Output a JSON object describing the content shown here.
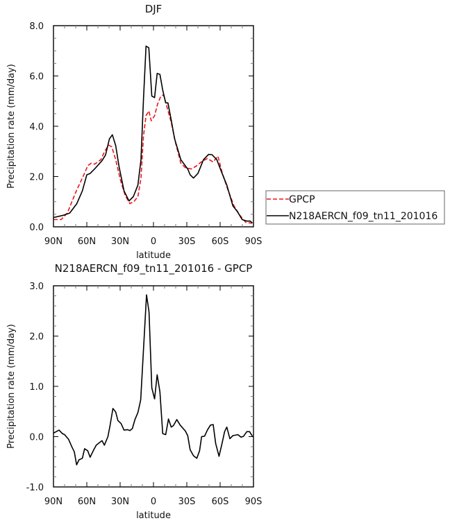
{
  "chart_data": [
    {
      "type": "line",
      "title": "DJF",
      "xlabel": "latitude",
      "ylabel": "Precipitation rate (mm/day)",
      "xlim": [
        90,
        -90
      ],
      "ylim": [
        0,
        8
      ],
      "xticks": [
        90,
        60,
        30,
        0,
        -30,
        -60,
        -90
      ],
      "xtick_labels": [
        "90N",
        "60N",
        "30N",
        "0",
        "30S",
        "60S",
        "90S"
      ],
      "yticks": [
        0,
        2,
        4,
        6,
        8
      ],
      "ytick_labels": [
        "0.0",
        "2.0",
        "4.0",
        "6.0",
        "8.0"
      ],
      "legend_position": "right-outside",
      "series": [
        {
          "name": "GPCP",
          "color": "#e8141b",
          "style": "dashed",
          "x": [
            90,
            83,
            77.5,
            73.3,
            69,
            64,
            59,
            56,
            53,
            47.3,
            44,
            40.4,
            37.5,
            34,
            29.6,
            25.4,
            21.25,
            17.5,
            14,
            11.25,
            9,
            6.7,
            4.2,
            2,
            -1,
            -3.7,
            -6.7,
            -9,
            -12,
            -16,
            -20,
            -24.6,
            -28.75,
            -34,
            -38,
            -43,
            -48.5,
            -53.7,
            -58,
            -62,
            -67,
            -72.5,
            -77.7,
            -83,
            -89
          ],
          "y": [
            0.29,
            0.29,
            0.55,
            1.01,
            1.47,
            1.94,
            2.44,
            2.53,
            2.49,
            2.67,
            3.0,
            3.25,
            3.18,
            2.67,
            1.84,
            1.24,
            0.92,
            1.01,
            1.2,
            1.94,
            3.6,
            4.42,
            4.61,
            4.22,
            4.42,
            4.88,
            5.2,
            5.25,
            4.79,
            4.15,
            3.32,
            2.53,
            2.35,
            2.3,
            2.4,
            2.58,
            2.72,
            2.58,
            2.81,
            2.12,
            1.47,
            0.83,
            0.46,
            0.18,
            0.14
          ]
        },
        {
          "name": "N218AERCN_f09_tn11_201016",
          "color": "#000000",
          "style": "solid",
          "x": [
            90,
            81,
            75.4,
            69,
            64,
            60,
            57,
            53,
            46.3,
            43.1,
            39.6,
            37,
            34,
            31,
            26.5,
            22,
            18.1,
            14,
            11.25,
            9,
            6.7,
            4.2,
            1.5,
            -1,
            -3.3,
            -5.8,
            -8.3,
            -11,
            -13,
            -16,
            -19,
            -24.6,
            -30.8,
            -33,
            -36,
            -40,
            -45,
            -49.6,
            -52.7,
            -57,
            -61,
            -66,
            -71.5,
            -75.6,
            -79.8,
            -84,
            -87,
            -89
          ],
          "y": [
            0.37,
            0.46,
            0.55,
            0.92,
            1.43,
            2.07,
            2.12,
            2.3,
            2.63,
            2.86,
            3.5,
            3.66,
            3.23,
            2.4,
            1.43,
            1.03,
            1.2,
            1.66,
            2.67,
            5.07,
            7.19,
            7.12,
            5.2,
            5.14,
            6.1,
            6.06,
            5.44,
            4.93,
            4.93,
            4.24,
            3.5,
            2.67,
            2.3,
            2.07,
            1.94,
            2.12,
            2.67,
            2.88,
            2.87,
            2.67,
            2.21,
            1.66,
            0.83,
            0.6,
            0.29,
            0.23,
            0.23,
            0.16
          ]
        }
      ],
      "legend": [
        "GPCP",
        "N218AERCN_f09_tn11_201016"
      ]
    },
    {
      "type": "line",
      "title": "N218AERCN_f09_tn11_201016 - GPCP",
      "xlabel": "latitude",
      "ylabel": "Precipitation rate (mm/day)",
      "xlim": [
        90,
        -90
      ],
      "ylim": [
        -1,
        3
      ],
      "xticks": [
        90,
        60,
        30,
        0,
        -30,
        -60,
        -90
      ],
      "xtick_labels": [
        "90N",
        "60N",
        "30N",
        "0",
        "30S",
        "60S",
        "90S"
      ],
      "yticks": [
        -1,
        0,
        1,
        2,
        3
      ],
      "ytick_labels": [
        "-1.0",
        "0.0",
        "1.0",
        "2.0",
        "3.0"
      ],
      "series": [
        {
          "name": "N218AERCN_f09_tn11_201016 - GPCP",
          "color": "#000000",
          "style": "solid",
          "x": [
            90,
            85,
            82,
            80,
            76.5,
            73.3,
            71.25,
            69.2,
            67,
            64,
            62,
            59.2,
            57,
            54.2,
            51.5,
            46.3,
            44.2,
            41,
            39,
            36.5,
            34,
            32,
            29.2,
            26.5,
            23.3,
            21.25,
            19,
            16.7,
            14,
            11.5,
            9.2,
            6.25,
            4,
            1.5,
            -1,
            -3.3,
            -5.8,
            -8.3,
            -11,
            -13.5,
            -16,
            -18,
            -21,
            -24,
            -28.75,
            -30.8,
            -33,
            -36,
            -39,
            -41.5,
            -43.3,
            -46,
            -48.5,
            -51.3,
            -53.75,
            -56,
            -59,
            -61.7,
            -64,
            -66,
            -68.75,
            -71.5,
            -76,
            -78.75,
            -81,
            -84,
            -86.5,
            -89
          ],
          "y": [
            0.07,
            0.13,
            0.06,
            0.04,
            -0.05,
            -0.21,
            -0.3,
            -0.56,
            -0.46,
            -0.43,
            -0.24,
            -0.28,
            -0.41,
            -0.28,
            -0.17,
            -0.08,
            -0.17,
            0,
            0.23,
            0.56,
            0.49,
            0.32,
            0.26,
            0.13,
            0.14,
            0.12,
            0.16,
            0.34,
            0.48,
            0.73,
            1.65,
            2.82,
            2.48,
            0.97,
            0.75,
            1.23,
            0.89,
            0.06,
            0.04,
            0.35,
            0.19,
            0.22,
            0.34,
            0.23,
            0.11,
            0.02,
            -0.26,
            -0.38,
            -0.43,
            -0.28,
            0,
            0.01,
            0.13,
            0.23,
            0.24,
            -0.14,
            -0.39,
            -0.14,
            0.1,
            0.19,
            -0.04,
            0.02,
            0.04,
            -0.01,
            0.005,
            0.1,
            0.1,
            0.01
          ]
        }
      ]
    }
  ]
}
